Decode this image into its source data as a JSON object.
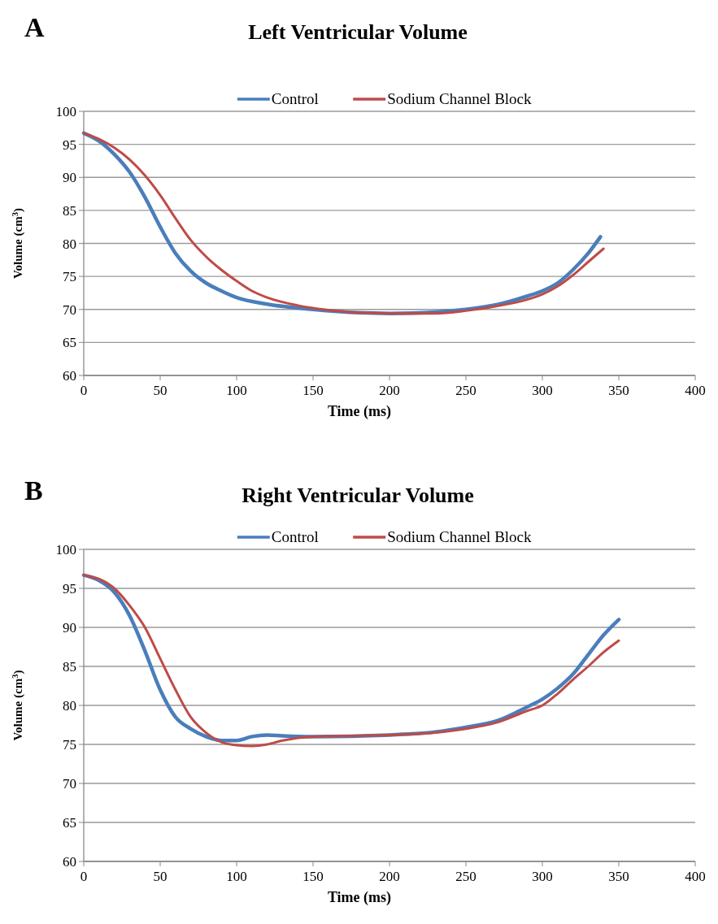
{
  "chart_data": [
    {
      "type": "line",
      "title": "Left Ventricular Volume",
      "annotations": [
        "A"
      ],
      "xlabel": "Time (ms)",
      "ylabel": "Volume (cm$^{3}$)",
      "xlim": [
        0,
        400
      ],
      "xticks": [
        0,
        50,
        100,
        150,
        200,
        250,
        300,
        350,
        400
      ],
      "ylim": [
        60,
        100
      ],
      "yticks": [
        60,
        65,
        70,
        75,
        80,
        85,
        90,
        95,
        100
      ],
      "grid": "y",
      "legend": "top",
      "series": [
        {
          "name": "Control",
          "color": "#4a7ebb",
          "x": [
            0,
            10,
            20,
            30,
            40,
            50,
            60,
            70,
            80,
            90,
            100,
            120,
            150,
            180,
            200,
            230,
            250,
            270,
            290,
            300,
            310,
            320,
            330,
            338
          ],
          "values": [
            96.7,
            95.5,
            93.5,
            90.8,
            87,
            82.5,
            78.5,
            75.8,
            74,
            72.8,
            71.8,
            70.8,
            70,
            69.5,
            69.4,
            69.6,
            70,
            70.7,
            72,
            72.8,
            74,
            76,
            78.5,
            81
          ]
        },
        {
          "name": "Sodium Channel Block",
          "color": "#be4b48",
          "x": [
            0,
            10,
            20,
            30,
            40,
            50,
            60,
            70,
            80,
            90,
            100,
            110,
            120,
            140,
            160,
            180,
            200,
            230,
            250,
            270,
            290,
            300,
            310,
            320,
            330,
            340
          ],
          "values": [
            96.7,
            95.8,
            94.5,
            92.7,
            90.3,
            87.3,
            83.8,
            80.5,
            78,
            76,
            74.3,
            72.8,
            71.8,
            70.6,
            69.9,
            69.5,
            69.4,
            69.4,
            69.8,
            70.5,
            71.5,
            72.3,
            73.5,
            75.2,
            77.2,
            79.2
          ]
        }
      ]
    },
    {
      "type": "line",
      "title": "Right Ventricular Volume",
      "annotations": [
        "B"
      ],
      "xlabel": "Time (ms)",
      "ylabel": "Volume (cm$^{3}$)",
      "xlim": [
        0,
        400
      ],
      "xticks": [
        0,
        50,
        100,
        150,
        200,
        250,
        300,
        350,
        400
      ],
      "ylim": [
        60,
        100
      ],
      "yticks": [
        60,
        65,
        70,
        75,
        80,
        85,
        90,
        95,
        100
      ],
      "grid": "y",
      "legend": "top",
      "series": [
        {
          "name": "Control",
          "color": "#4a7ebb",
          "x": [
            0,
            10,
            20,
            30,
            40,
            50,
            60,
            70,
            80,
            90,
            100,
            110,
            120,
            130,
            150,
            200,
            230,
            250,
            270,
            290,
            300,
            310,
            320,
            330,
            340,
            350
          ],
          "values": [
            96.7,
            96,
            94.5,
            91.5,
            87,
            82,
            78.5,
            77,
            76,
            75.5,
            75.5,
            76,
            76.2,
            76.1,
            76,
            76.2,
            76.6,
            77.2,
            78,
            79.8,
            80.8,
            82.2,
            84,
            86.5,
            89,
            91
          ]
        },
        {
          "name": "Sodium Channel Block",
          "color": "#be4b48",
          "x": [
            0,
            10,
            20,
            30,
            40,
            50,
            60,
            70,
            80,
            90,
            100,
            110,
            120,
            130,
            150,
            200,
            230,
            250,
            270,
            290,
            300,
            310,
            320,
            330,
            340,
            350
          ],
          "values": [
            96.7,
            96.2,
            95,
            92.8,
            90,
            86,
            82,
            78.5,
            76.5,
            75.3,
            74.9,
            74.8,
            75,
            75.5,
            76,
            76.2,
            76.5,
            77,
            77.8,
            79.3,
            80,
            81.5,
            83.3,
            85,
            86.8,
            88.3
          ]
        }
      ]
    }
  ]
}
